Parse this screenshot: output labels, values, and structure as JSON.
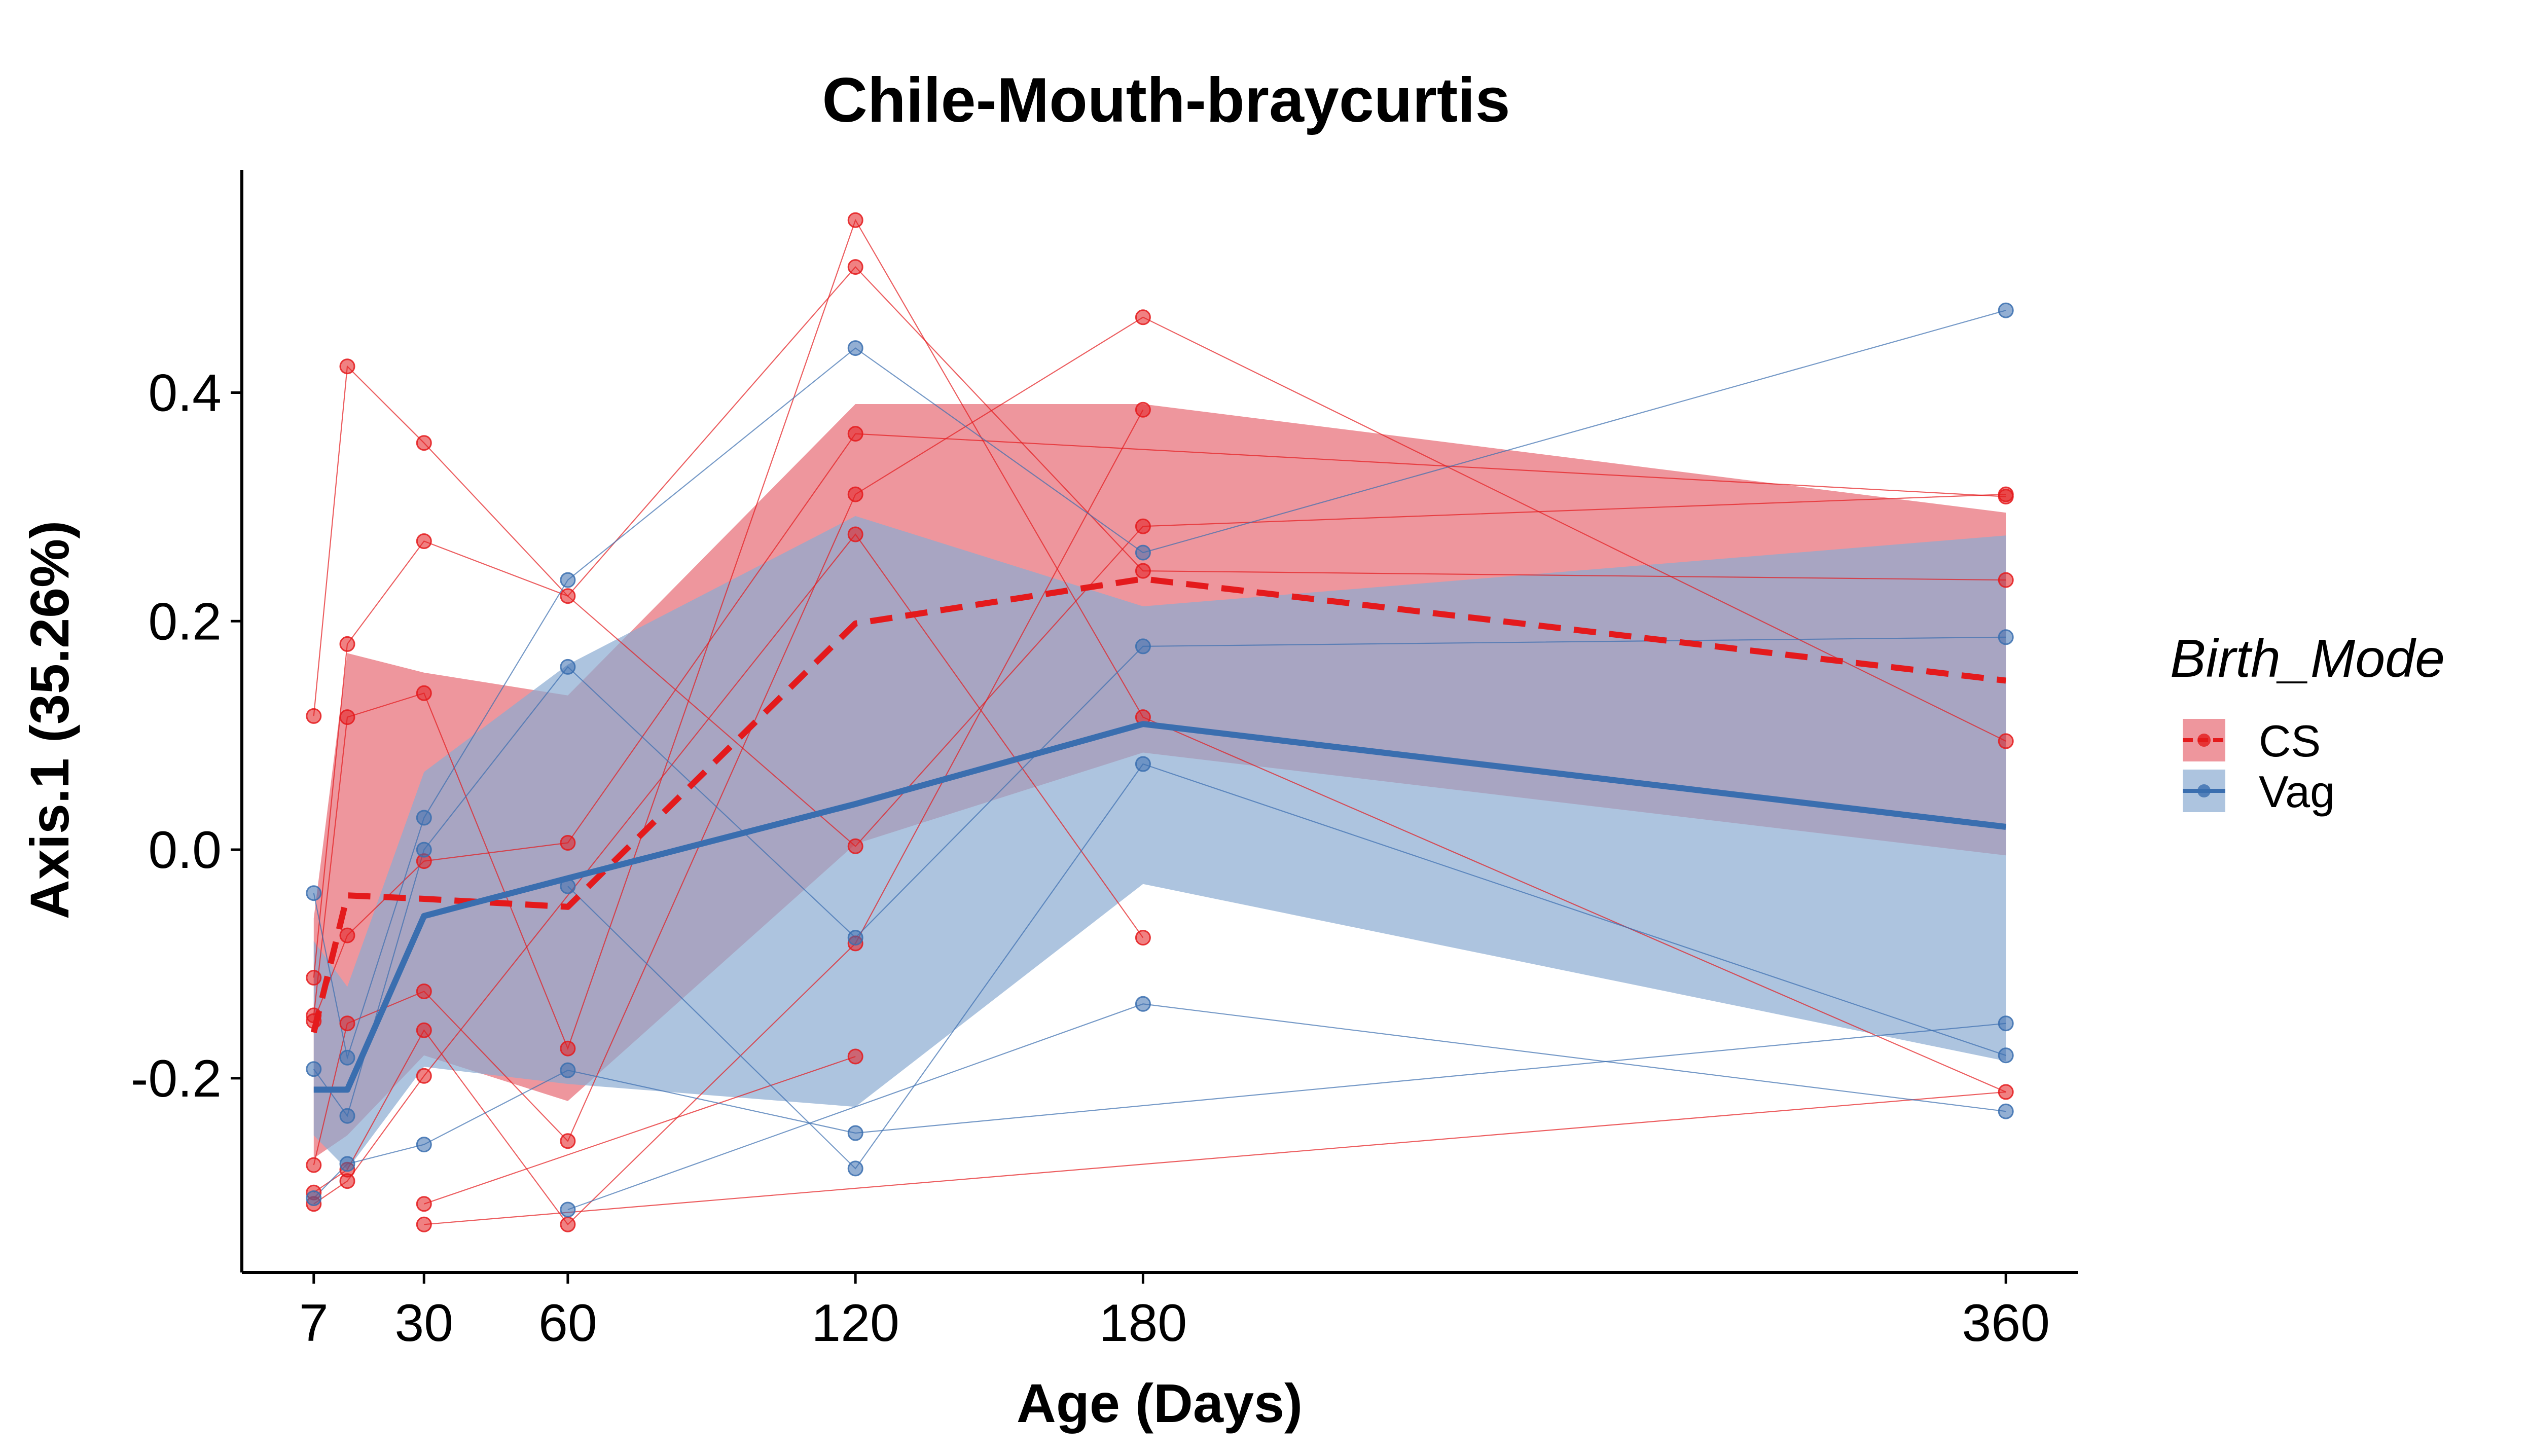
{
  "chart_data": {
    "type": "line",
    "title": "Chile-Mouth-braycurtis",
    "xlabel": "Age (Days)",
    "ylabel": "Axis.1 (35.26%)",
    "xlim": [
      -8,
      375
    ],
    "ylim": [
      -0.37,
      0.595
    ],
    "x_ticks": [
      7,
      30,
      60,
      120,
      180,
      360
    ],
    "x_tick_labels": [
      "7",
      "30",
      "60",
      "120",
      "180",
      "360"
    ],
    "y_ticks": [
      -0.2,
      0.0,
      0.2,
      0.4
    ],
    "y_tick_labels": [
      "-0.2",
      "0.0",
      "0.2",
      "0.4"
    ],
    "grid": false,
    "legend": {
      "title": "Birth_Mode",
      "placement": "right",
      "entries": [
        "CS",
        "Vag"
      ]
    },
    "series": [
      {
        "name": "CS",
        "color": "#e41a1c",
        "line_style": "dashed",
        "mean": [
          {
            "x": 7,
            "y": -0.16
          },
          {
            "x": 14,
            "y": -0.04
          },
          {
            "x": 30,
            "y": -0.043
          },
          {
            "x": 60,
            "y": -0.05
          },
          {
            "x": 120,
            "y": 0.198
          },
          {
            "x": 180,
            "y": 0.237
          },
          {
            "x": 360,
            "y": 0.148
          }
        ],
        "ribbon_upper": [
          {
            "x": 7,
            "y": -0.06
          },
          {
            "x": 14,
            "y": 0.172
          },
          {
            "x": 30,
            "y": 0.155
          },
          {
            "x": 60,
            "y": 0.135
          },
          {
            "x": 120,
            "y": 0.39
          },
          {
            "x": 180,
            "y": 0.39
          },
          {
            "x": 360,
            "y": 0.295
          }
        ],
        "ribbon_lower": [
          {
            "x": 7,
            "y": -0.27
          },
          {
            "x": 14,
            "y": -0.25
          },
          {
            "x": 30,
            "y": -0.18
          },
          {
            "x": 60,
            "y": -0.22
          },
          {
            "x": 120,
            "y": 0.005
          },
          {
            "x": 180,
            "y": 0.085
          },
          {
            "x": 360,
            "y": -0.005
          }
        ],
        "points": [
          {
            "x": 7,
            "y": 0.117
          },
          {
            "x": 7,
            "y": -0.112
          },
          {
            "x": 7,
            "y": -0.145
          },
          {
            "x": 7,
            "y": -0.15
          },
          {
            "x": 7,
            "y": -0.276
          },
          {
            "x": 7,
            "y": -0.3
          },
          {
            "x": 7,
            "y": -0.31
          },
          {
            "x": 14,
            "y": 0.423
          },
          {
            "x": 14,
            "y": 0.18
          },
          {
            "x": 14,
            "y": 0.116
          },
          {
            "x": 14,
            "y": -0.075
          },
          {
            "x": 14,
            "y": -0.152
          },
          {
            "x": 14,
            "y": -0.28
          },
          {
            "x": 14,
            "y": -0.29
          },
          {
            "x": 30,
            "y": 0.356
          },
          {
            "x": 30,
            "y": 0.27
          },
          {
            "x": 30,
            "y": 0.137
          },
          {
            "x": 30,
            "y": -0.01
          },
          {
            "x": 30,
            "y": -0.124
          },
          {
            "x": 30,
            "y": -0.158
          },
          {
            "x": 30,
            "y": -0.198
          },
          {
            "x": 30,
            "y": -0.31
          },
          {
            "x": 30,
            "y": -0.328
          },
          {
            "x": 60,
            "y": 0.222
          },
          {
            "x": 60,
            "y": 0.006
          },
          {
            "x": 60,
            "y": -0.174
          },
          {
            "x": 60,
            "y": -0.255
          },
          {
            "x": 60,
            "y": -0.328
          },
          {
            "x": 120,
            "y": 0.551
          },
          {
            "x": 120,
            "y": 0.51
          },
          {
            "x": 120,
            "y": 0.364
          },
          {
            "x": 120,
            "y": 0.311
          },
          {
            "x": 120,
            "y": 0.276
          },
          {
            "x": 120,
            "y": 0.003
          },
          {
            "x": 120,
            "y": -0.082
          },
          {
            "x": 120,
            "y": -0.181
          },
          {
            "x": 180,
            "y": 0.466
          },
          {
            "x": 180,
            "y": 0.385
          },
          {
            "x": 180,
            "y": 0.283
          },
          {
            "x": 180,
            "y": 0.244
          },
          {
            "x": 180,
            "y": 0.116
          },
          {
            "x": 180,
            "y": -0.077
          },
          {
            "x": 360,
            "y": 0.311
          },
          {
            "x": 360,
            "y": 0.309
          },
          {
            "x": 360,
            "y": 0.236
          },
          {
            "x": 360,
            "y": 0.095
          },
          {
            "x": 360,
            "y": -0.212
          }
        ]
      },
      {
        "name": "Vag",
        "color": "#3a6eaf",
        "line_style": "solid",
        "mean": [
          {
            "x": 7,
            "y": -0.21
          },
          {
            "x": 14,
            "y": -0.21
          },
          {
            "x": 30,
            "y": -0.058
          },
          {
            "x": 60,
            "y": -0.025
          },
          {
            "x": 120,
            "y": 0.04
          },
          {
            "x": 180,
            "y": 0.11
          },
          {
            "x": 360,
            "y": 0.02
          }
        ],
        "ribbon_upper": [
          {
            "x": 7,
            "y": -0.08
          },
          {
            "x": 14,
            "y": -0.12
          },
          {
            "x": 30,
            "y": 0.068
          },
          {
            "x": 60,
            "y": 0.162
          },
          {
            "x": 120,
            "y": 0.292
          },
          {
            "x": 180,
            "y": 0.213
          },
          {
            "x": 360,
            "y": 0.275
          }
        ],
        "ribbon_lower": [
          {
            "x": 7,
            "y": -0.25
          },
          {
            "x": 14,
            "y": -0.28
          },
          {
            "x": 30,
            "y": -0.19
          },
          {
            "x": 60,
            "y": -0.205
          },
          {
            "x": 120,
            "y": -0.225
          },
          {
            "x": 180,
            "y": -0.03
          },
          {
            "x": 360,
            "y": -0.185
          }
        ],
        "points": [
          {
            "x": 7,
            "y": -0.038
          },
          {
            "x": 7,
            "y": -0.192
          },
          {
            "x": 7,
            "y": -0.305
          },
          {
            "x": 14,
            "y": -0.182
          },
          {
            "x": 14,
            "y": -0.233
          },
          {
            "x": 14,
            "y": -0.275
          },
          {
            "x": 30,
            "y": 0.028
          },
          {
            "x": 30,
            "y": 0.0
          },
          {
            "x": 30,
            "y": -0.258
          },
          {
            "x": 60,
            "y": 0.236
          },
          {
            "x": 60,
            "y": 0.16
          },
          {
            "x": 60,
            "y": -0.032
          },
          {
            "x": 60,
            "y": -0.193
          },
          {
            "x": 60,
            "y": -0.315
          },
          {
            "x": 120,
            "y": 0.439
          },
          {
            "x": 120,
            "y": -0.077
          },
          {
            "x": 120,
            "y": -0.248
          },
          {
            "x": 120,
            "y": -0.279
          },
          {
            "x": 180,
            "y": 0.26
          },
          {
            "x": 180,
            "y": 0.178
          },
          {
            "x": 180,
            "y": 0.075
          },
          {
            "x": 180,
            "y": -0.135
          },
          {
            "x": 360,
            "y": 0.472
          },
          {
            "x": 360,
            "y": 0.186
          },
          {
            "x": 360,
            "y": -0.152
          },
          {
            "x": 360,
            "y": -0.18
          },
          {
            "x": 360,
            "y": -0.229
          }
        ],
        "ribbon_color": "#8aabd2"
      }
    ],
    "subject_lines": {
      "CS": [
        [
          [
            7,
            0.117
          ],
          [
            14,
            0.423
          ],
          [
            30,
            0.356
          ],
          [
            60,
            0.222
          ],
          [
            120,
            0.003
          ],
          [
            180,
            0.283
          ],
          [
            360,
            0.311
          ]
        ],
        [
          [
            7,
            -0.112
          ],
          [
            14,
            0.18
          ],
          [
            30,
            0.27
          ],
          [
            60,
            0.222
          ],
          [
            120,
            0.51
          ],
          [
            180,
            0.244
          ],
          [
            360,
            0.236
          ]
        ],
        [
          [
            7,
            -0.145
          ],
          [
            14,
            0.116
          ],
          [
            30,
            0.137
          ],
          [
            60,
            -0.174
          ],
          [
            120,
            0.551
          ],
          [
            180,
            0.116
          ],
          [
            360,
            -0.212
          ]
        ],
        [
          [
            7,
            -0.15
          ],
          [
            14,
            -0.075
          ],
          [
            30,
            -0.01
          ],
          [
            60,
            0.006
          ],
          [
            120,
            0.364
          ],
          [
            360,
            0.309
          ]
        ],
        [
          [
            7,
            -0.276
          ],
          [
            14,
            -0.152
          ],
          [
            30,
            -0.124
          ],
          [
            60,
            -0.255
          ],
          [
            120,
            0.311
          ],
          [
            180,
            0.466
          ],
          [
            360,
            0.095
          ]
        ],
        [
          [
            7,
            -0.3
          ],
          [
            14,
            -0.28
          ],
          [
            30,
            -0.158
          ],
          [
            60,
            -0.328
          ],
          [
            120,
            -0.082
          ],
          [
            180,
            0.385
          ]
        ],
        [
          [
            7,
            -0.31
          ],
          [
            14,
            -0.29
          ],
          [
            30,
            -0.198
          ],
          [
            120,
            0.276
          ],
          [
            180,
            -0.077
          ]
        ],
        [
          [
            30,
            -0.31
          ],
          [
            120,
            -0.181
          ]
        ],
        [
          [
            30,
            -0.328
          ],
          [
            360,
            -0.212
          ]
        ]
      ],
      "Vag": [
        [
          [
            7,
            -0.038
          ],
          [
            14,
            -0.182
          ],
          [
            30,
            0.028
          ],
          [
            60,
            0.236
          ],
          [
            120,
            0.439
          ],
          [
            180,
            0.26
          ],
          [
            360,
            0.472
          ]
        ],
        [
          [
            7,
            -0.192
          ],
          [
            14,
            -0.233
          ],
          [
            30,
            0.0
          ],
          [
            60,
            0.16
          ],
          [
            120,
            -0.077
          ],
          [
            180,
            0.178
          ],
          [
            360,
            0.186
          ]
        ],
        [
          [
            7,
            -0.305
          ],
          [
            14,
            -0.275
          ],
          [
            30,
            -0.258
          ],
          [
            60,
            -0.193
          ],
          [
            120,
            -0.248
          ],
          [
            360,
            -0.152
          ]
        ],
        [
          [
            60,
            -0.032
          ],
          [
            120,
            -0.279
          ],
          [
            180,
            0.075
          ],
          [
            360,
            -0.18
          ]
        ],
        [
          [
            60,
            -0.315
          ],
          [
            180,
            -0.135
          ],
          [
            360,
            -0.229
          ]
        ]
      ]
    }
  }
}
